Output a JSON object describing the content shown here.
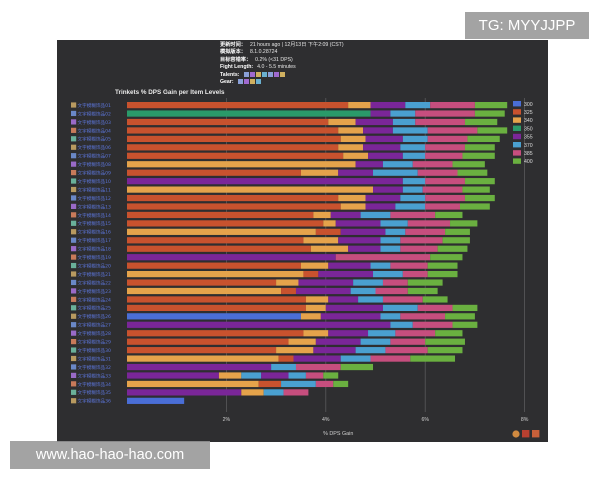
{
  "badges": {
    "top_right": "TG: MYYJJPP",
    "bottom_left": "www.hao-hao-hao.com"
  },
  "info": {
    "rows": [
      {
        "key": "更新时间：",
        "value": "21 hours ago | 12月13日 下午2:09 (CST)"
      },
      {
        "key": "模拟版本：",
        "value": "8.1.0.28724"
      },
      {
        "key": "目标容错率：",
        "value": "0.2% (<31 DPS)"
      },
      {
        "key": "Fight Length:",
        "value": "4.0 - 5.5 minutes"
      },
      {
        "key": "Talents:",
        "value": ""
      },
      {
        "key": "Gear:",
        "value": ""
      }
    ]
  },
  "chart_data": {
    "type": "bar",
    "stacked": true,
    "orientation": "horizontal",
    "title": "Trinkets % DPS Gain per Item Levels",
    "xlabel": "% DPS Gain",
    "xlim": [
      0,
      8.5
    ],
    "xticks": [
      "2%",
      "4%",
      "6%",
      "8%"
    ],
    "xtick_values": [
      2,
      4,
      6,
      8
    ],
    "grid": true,
    "legend_position": "right",
    "series": [
      {
        "name": "300",
        "color": "#4a6ed6"
      },
      {
        "name": "325",
        "color": "#c8522e"
      },
      {
        "name": "340",
        "color": "#e5a34b"
      },
      {
        "name": "350",
        "color": "#2a9a6a"
      },
      {
        "name": "355",
        "color": "#7a2698"
      },
      {
        "name": "370",
        "color": "#4aa0d0"
      },
      {
        "name": "385",
        "color": "#c64e7e"
      },
      {
        "name": "400",
        "color": "#6ab040"
      }
    ],
    "categories": [
      "文字模糊饰品01",
      "文字模糊饰品02",
      "文字模糊饰品03",
      "文字模糊饰品04",
      "文字模糊饰品05",
      "文字模糊饰品06",
      "文字模糊饰品07",
      "文字模糊饰品08",
      "文字模糊饰品09",
      "文字模糊饰品10",
      "文字模糊饰品11",
      "文字模糊饰品12",
      "文字模糊饰品13",
      "文字模糊饰品14",
      "文字模糊饰品15",
      "文字模糊饰品16",
      "文字模糊饰品17",
      "文字模糊饰品18",
      "文字模糊饰品19",
      "文字模糊饰品20",
      "文字模糊饰品21",
      "文字模糊饰品22",
      "文字模糊饰品23",
      "文字模糊饰品24",
      "文字模糊饰品25",
      "文字模糊饰品26",
      "文字模糊饰品27",
      "文字模糊饰品28",
      "文字模糊饰品29",
      "文字模糊饰品30",
      "文字模糊饰品31",
      "文字模糊饰品32",
      "文字模糊饰品33",
      "文字模糊饰品34",
      "文字模糊饰品35",
      "文字模糊饰品36"
    ],
    "rows": [
      [
        {
          "s": 1,
          "v": 4.45
        },
        {
          "s": 2,
          "v": 0.45
        },
        {
          "s": 4,
          "v": 0.7
        },
        {
          "s": 5,
          "v": 0.5
        },
        {
          "s": 6,
          "v": 0.9
        },
        {
          "s": 7,
          "v": 0.65
        }
      ],
      [
        {
          "s": 3,
          "v": 4.9
        },
        {
          "s": 4,
          "v": 0.4
        },
        {
          "s": 5,
          "v": 0.5
        },
        {
          "s": 6,
          "v": 1.2
        },
        {
          "s": 7,
          "v": 0.6
        }
      ],
      [
        {
          "s": 1,
          "v": 4.05
        },
        {
          "s": 2,
          "v": 0.55
        },
        {
          "s": 4,
          "v": 0.75
        },
        {
          "s": 5,
          "v": 0.45
        },
        {
          "s": 6,
          "v": 1.0
        },
        {
          "s": 7,
          "v": 0.65
        }
      ],
      [
        {
          "s": 1,
          "v": 4.25
        },
        {
          "s": 2,
          "v": 0.5
        },
        {
          "s": 4,
          "v": 0.6
        },
        {
          "s": 5,
          "v": 0.7
        },
        {
          "s": 6,
          "v": 1.0
        },
        {
          "s": 7,
          "v": 0.6
        }
      ],
      [
        {
          "s": 1,
          "v": 4.3
        },
        {
          "s": 2,
          "v": 0.5
        },
        {
          "s": 4,
          "v": 0.75
        },
        {
          "s": 5,
          "v": 0.5
        },
        {
          "s": 6,
          "v": 0.8
        },
        {
          "s": 7,
          "v": 0.65
        }
      ],
      [
        {
          "s": 1,
          "v": 4.25
        },
        {
          "s": 2,
          "v": 0.5
        },
        {
          "s": 4,
          "v": 0.75
        },
        {
          "s": 5,
          "v": 0.5
        },
        {
          "s": 6,
          "v": 0.8
        },
        {
          "s": 7,
          "v": 0.6
        }
      ],
      [
        {
          "s": 1,
          "v": 4.35
        },
        {
          "s": 2,
          "v": 0.5
        },
        {
          "s": 4,
          "v": 0.7
        },
        {
          "s": 5,
          "v": 0.45
        },
        {
          "s": 6,
          "v": 0.75
        },
        {
          "s": 7,
          "v": 0.65
        }
      ],
      [
        {
          "s": 2,
          "v": 4.6
        },
        {
          "s": 4,
          "v": 0.55
        },
        {
          "s": 5,
          "v": 0.6
        },
        {
          "s": 6,
          "v": 0.8
        },
        {
          "s": 7,
          "v": 0.65
        }
      ],
      [
        {
          "s": 1,
          "v": 3.5
        },
        {
          "s": 2,
          "v": 0.75
        },
        {
          "s": 4,
          "v": 0.7
        },
        {
          "s": 5,
          "v": 0.9
        },
        {
          "s": 6,
          "v": 0.8
        },
        {
          "s": 7,
          "v": 0.6
        }
      ],
      [
        {
          "s": 4,
          "v": 5.55
        },
        {
          "s": 5,
          "v": 0.45
        },
        {
          "s": 6,
          "v": 0.8
        },
        {
          "s": 7,
          "v": 0.6
        }
      ],
      [
        {
          "s": 2,
          "v": 4.95
        },
        {
          "s": 4,
          "v": 0.6
        },
        {
          "s": 5,
          "v": 0.4
        },
        {
          "s": 6,
          "v": 0.8
        },
        {
          "s": 7,
          "v": 0.55
        }
      ],
      [
        {
          "s": 1,
          "v": 4.25
        },
        {
          "s": 2,
          "v": 0.55
        },
        {
          "s": 4,
          "v": 0.7
        },
        {
          "s": 5,
          "v": 0.5
        },
        {
          "s": 6,
          "v": 0.8
        },
        {
          "s": 7,
          "v": 0.6
        }
      ],
      [
        {
          "s": 1,
          "v": 4.3
        },
        {
          "s": 2,
          "v": 0.5
        },
        {
          "s": 4,
          "v": 0.6
        },
        {
          "s": 5,
          "v": 0.6
        },
        {
          "s": 6,
          "v": 0.7
        },
        {
          "s": 7,
          "v": 0.6
        }
      ],
      [
        {
          "s": 1,
          "v": 3.75
        },
        {
          "s": 2,
          "v": 0.35
        },
        {
          "s": 4,
          "v": 0.6
        },
        {
          "s": 5,
          "v": 0.6
        },
        {
          "s": 6,
          "v": 0.9
        },
        {
          "s": 7,
          "v": 0.55
        }
      ],
      [
        {
          "s": 1,
          "v": 3.95
        },
        {
          "s": 2,
          "v": 0.25
        },
        {
          "s": 4,
          "v": 0.9
        },
        {
          "s": 5,
          "v": 0.55
        },
        {
          "s": 6,
          "v": 0.85
        },
        {
          "s": 7,
          "v": 0.55
        }
      ],
      [
        {
          "s": 2,
          "v": 3.8
        },
        {
          "s": 1,
          "v": 0.5
        },
        {
          "s": 4,
          "v": 0.9
        },
        {
          "s": 5,
          "v": 0.4
        },
        {
          "s": 6,
          "v": 0.8
        },
        {
          "s": 7,
          "v": 0.5
        }
      ],
      [
        {
          "s": 1,
          "v": 3.55
        },
        {
          "s": 2,
          "v": 0.7
        },
        {
          "s": 4,
          "v": 0.85
        },
        {
          "s": 5,
          "v": 0.4
        },
        {
          "s": 6,
          "v": 0.85
        },
        {
          "s": 7,
          "v": 0.55
        }
      ],
      [
        {
          "s": 1,
          "v": 3.7
        },
        {
          "s": 2,
          "v": 0.75
        },
        {
          "s": 4,
          "v": 0.65
        },
        {
          "s": 5,
          "v": 0.4
        },
        {
          "s": 6,
          "v": 0.75
        },
        {
          "s": 7,
          "v": 0.6
        }
      ],
      [
        {
          "s": 4,
          "v": 4.2
        },
        {
          "s": 6,
          "v": 1.9
        },
        {
          "s": 7,
          "v": 0.65
        }
      ],
      [
        {
          "s": 1,
          "v": 3.5
        },
        {
          "s": 2,
          "v": 0.55
        },
        {
          "s": 4,
          "v": 0.85
        },
        {
          "s": 5,
          "v": 0.4
        },
        {
          "s": 6,
          "v": 0.75
        },
        {
          "s": 7,
          "v": 0.6
        }
      ],
      [
        {
          "s": 2,
          "v": 3.55
        },
        {
          "s": 1,
          "v": 0.3
        },
        {
          "s": 4,
          "v": 1.1
        },
        {
          "s": 5,
          "v": 0.6
        },
        {
          "s": 6,
          "v": 0.5
        },
        {
          "s": 7,
          "v": 0.6
        }
      ],
      [
        {
          "s": 1,
          "v": 3.0
        },
        {
          "s": 2,
          "v": 0.45
        },
        {
          "s": 4,
          "v": 1.1
        },
        {
          "s": 5,
          "v": 0.6
        },
        {
          "s": 6,
          "v": 0.5
        },
        {
          "s": 7,
          "v": 0.7
        }
      ],
      [
        {
          "s": 2,
          "v": 3.1
        },
        {
          "s": 1,
          "v": 0.3
        },
        {
          "s": 4,
          "v": 1.1
        },
        {
          "s": 5,
          "v": 0.5
        },
        {
          "s": 6,
          "v": 0.65
        },
        {
          "s": 7,
          "v": 0.6
        }
      ],
      [
        {
          "s": 1,
          "v": 3.6
        },
        {
          "s": 2,
          "v": 0.45
        },
        {
          "s": 4,
          "v": 0.6
        },
        {
          "s": 5,
          "v": 0.5
        },
        {
          "s": 6,
          "v": 0.8
        },
        {
          "s": 7,
          "v": 0.5
        }
      ],
      [
        {
          "s": 1,
          "v": 3.6
        },
        {
          "s": 2,
          "v": 0.4
        },
        {
          "s": 4,
          "v": 1.15
        },
        {
          "s": 5,
          "v": 0.7
        },
        {
          "s": 6,
          "v": 0.7
        },
        {
          "s": 7,
          "v": 0.5
        }
      ],
      [
        {
          "s": 0,
          "v": 3.5
        },
        {
          "s": 2,
          "v": 0.4
        },
        {
          "s": 4,
          "v": 1.2
        },
        {
          "s": 5,
          "v": 0.4
        },
        {
          "s": 6,
          "v": 0.9
        },
        {
          "s": 7,
          "v": 0.6
        }
      ],
      [
        {
          "s": 4,
          "v": 5.3
        },
        {
          "s": 5,
          "v": 0.45
        },
        {
          "s": 6,
          "v": 0.8
        },
        {
          "s": 7,
          "v": 0.5
        }
      ],
      [
        {
          "s": 1,
          "v": 3.55
        },
        {
          "s": 2,
          "v": 0.5
        },
        {
          "s": 4,
          "v": 0.8
        },
        {
          "s": 5,
          "v": 0.55
        },
        {
          "s": 6,
          "v": 0.8
        },
        {
          "s": 7,
          "v": 0.55
        }
      ],
      [
        {
          "s": 1,
          "v": 3.25
        },
        {
          "s": 2,
          "v": 0.55
        },
        {
          "s": 4,
          "v": 0.9
        },
        {
          "s": 5,
          "v": 0.6
        },
        {
          "s": 6,
          "v": 0.7
        },
        {
          "s": 7,
          "v": 0.8
        }
      ],
      [
        {
          "s": 1,
          "v": 3.0
        },
        {
          "s": 2,
          "v": 0.75
        },
        {
          "s": 4,
          "v": 0.85
        },
        {
          "s": 5,
          "v": 0.6
        },
        {
          "s": 6,
          "v": 0.85
        },
        {
          "s": 7,
          "v": 0.7
        }
      ],
      [
        {
          "s": 2,
          "v": 3.05
        },
        {
          "s": 1,
          "v": 0.3
        },
        {
          "s": 4,
          "v": 0.95
        },
        {
          "s": 5,
          "v": 0.6
        },
        {
          "s": 6,
          "v": 0.8
        },
        {
          "s": 7,
          "v": 0.9
        }
      ],
      [
        {
          "s": 4,
          "v": 2.9
        },
        {
          "s": 5,
          "v": 0.5
        },
        {
          "s": 6,
          "v": 0.9
        },
        {
          "s": 7,
          "v": 0.65
        }
      ],
      [
        {
          "s": 4,
          "v": 1.85
        },
        {
          "s": 2,
          "v": 0.45
        },
        {
          "s": 5,
          "v": 0.4
        },
        {
          "s": 4,
          "v": 0.55
        },
        {
          "s": 5,
          "v": 0.35
        },
        {
          "s": 6,
          "v": 0.35
        },
        {
          "s": 7,
          "v": 0.3
        }
      ],
      [
        {
          "s": 2,
          "v": 2.65
        },
        {
          "s": 1,
          "v": 0.45
        },
        {
          "s": 5,
          "v": 0.7
        },
        {
          "s": 6,
          "v": 0.35
        },
        {
          "s": 7,
          "v": 0.3
        }
      ],
      [
        {
          "s": 4,
          "v": 2.3
        },
        {
          "s": 2,
          "v": 0.45
        },
        {
          "s": 5,
          "v": 0.4
        },
        {
          "s": 6,
          "v": 0.5
        }
      ],
      [
        {
          "s": 0,
          "v": 1.15
        }
      ]
    ]
  }
}
